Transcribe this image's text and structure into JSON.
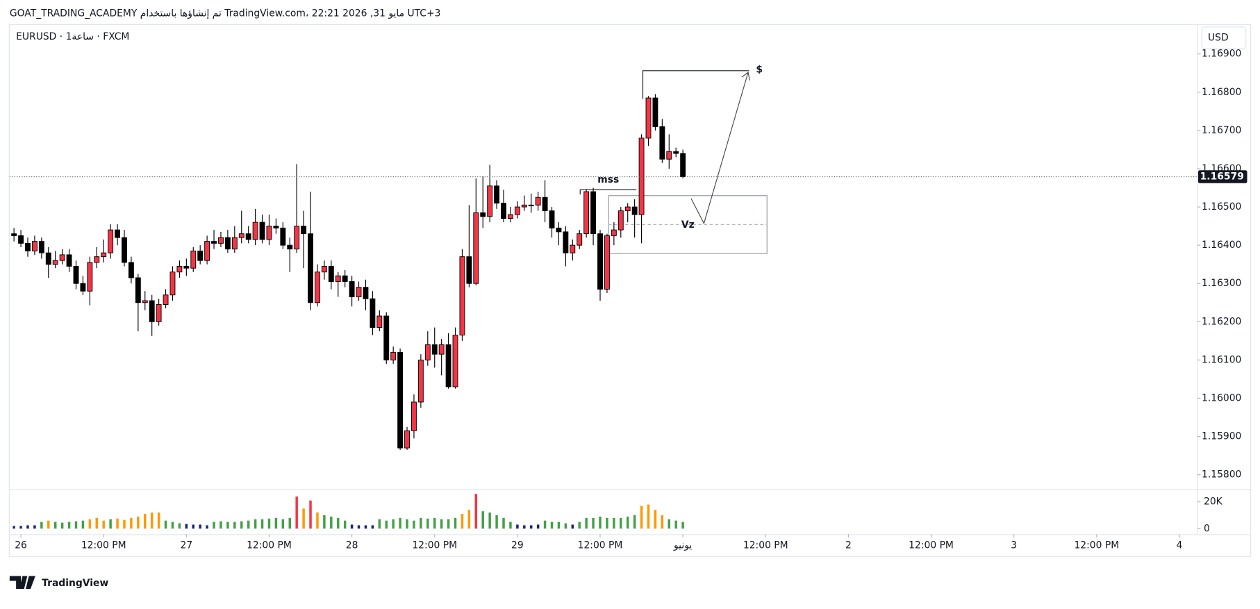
{
  "header": {
    "caption": "GOAT_TRADING_ACADEMY تم إنشاؤها باستخدام TradingView.com، 22:21 2026 ,31 مايو UTC+3"
  },
  "footer": {
    "logo": "TradingView"
  },
  "chart_data": {
    "type": "candlestick",
    "title": "EURUSD · 1ساعة · FXCM",
    "currency": "USD",
    "up_color": "#f23645",
    "down_color": "#000000",
    "wick_color": "#000000",
    "grid": false,
    "x": [
      -1,
      0,
      1,
      2,
      3,
      4,
      5,
      6,
      7,
      8,
      9,
      10,
      11,
      12,
      13,
      14,
      15,
      16,
      17,
      18,
      19,
      20,
      21,
      22,
      23,
      24,
      25,
      26,
      27,
      28,
      29,
      30,
      31,
      32,
      33,
      34,
      35,
      36,
      37,
      38,
      39,
      40,
      41,
      42,
      43,
      44,
      45,
      46,
      47,
      48,
      49,
      50,
      51,
      52,
      53,
      54,
      55,
      56,
      57,
      58,
      59,
      60,
      61,
      62,
      63,
      64,
      65,
      66,
      67,
      68,
      69,
      70,
      71,
      72,
      73,
      74,
      75,
      76,
      77,
      78,
      79,
      80,
      81,
      82,
      83,
      84,
      85,
      86,
      87,
      88,
      89,
      90,
      91,
      92,
      93,
      94,
      95,
      96
    ],
    "open": [
      1.1643,
      1.16425,
      1.16405,
      1.16385,
      1.1641,
      1.1638,
      1.1635,
      1.1636,
      1.16375,
      1.16345,
      1.163,
      1.1628,
      1.16355,
      1.1637,
      1.1638,
      1.1644,
      1.1642,
      1.16355,
      1.16315,
      1.1625,
      1.16255,
      1.162,
      1.16245,
      1.1627,
      1.1633,
      1.16345,
      1.1634,
      1.16385,
      1.1636,
      1.1641,
      1.16405,
      1.1642,
      1.1639,
      1.1642,
      1.1643,
      1.16415,
      1.1646,
      1.16415,
      1.1645,
      1.16445,
      1.164,
      1.1639,
      1.1645,
      1.1643,
      1.1625,
      1.1633,
      1.16345,
      1.16305,
      1.1632,
      1.16305,
      1.16265,
      1.1629,
      1.1626,
      1.16185,
      1.16215,
      1.161,
      1.1612,
      1.1587,
      1.15915,
      1.1599,
      1.161,
      1.1614,
      1.16115,
      1.1614,
      1.1603,
      1.16165,
      1.1637,
      1.163,
      1.16485,
      1.16475,
      1.16555,
      1.1651,
      1.1647,
      1.1648,
      1.165,
      1.16505,
      1.16505,
      1.16525,
      1.1649,
      1.16445,
      1.16435,
      1.1638,
      1.164,
      1.1643,
      1.1654,
      1.1643,
      1.16285,
      1.16425,
      1.1644,
      1.1649,
      1.165,
      1.1648,
      1.1668,
      1.16785,
      1.1671,
      1.16625,
      1.16645,
      1.1664
    ],
    "high": [
      1.16445,
      1.1644,
      1.1642,
      1.16425,
      1.1642,
      1.16395,
      1.16385,
      1.1639,
      1.1639,
      1.1636,
      1.1632,
      1.1637,
      1.16395,
      1.16415,
      1.16455,
      1.16455,
      1.1644,
      1.1637,
      1.16325,
      1.1628,
      1.1627,
      1.1626,
      1.16285,
      1.16345,
      1.1636,
      1.16365,
      1.16395,
      1.164,
      1.16425,
      1.1644,
      1.16435,
      1.1644,
      1.1645,
      1.1649,
      1.1645,
      1.16495,
      1.1648,
      1.1648,
      1.1647,
      1.1646,
      1.1642,
      1.16612,
      1.1649,
      1.1654,
      1.1635,
      1.1636,
      1.1636,
      1.1633,
      1.16335,
      1.1632,
      1.16305,
      1.1631,
      1.1628,
      1.1623,
      1.16225,
      1.16135,
      1.1613,
      1.15925,
      1.1601,
      1.16115,
      1.16175,
      1.16185,
      1.16155,
      1.1617,
      1.16185,
      1.1639,
      1.16505,
      1.16575,
      1.1658,
      1.1661,
      1.1657,
      1.16545,
      1.165,
      1.16515,
      1.1653,
      1.16535,
      1.1654,
      1.1657,
      1.165,
      1.1646,
      1.1645,
      1.16415,
      1.1644,
      1.16545,
      1.1655,
      1.1644,
      1.1643,
      1.1646,
      1.165,
      1.1651,
      1.1652,
      1.1669,
      1.1679,
      1.16795,
      1.1673,
      1.1669,
      1.16655,
      1.1665
    ],
    "low": [
      1.1641,
      1.16395,
      1.1637,
      1.16375,
      1.16365,
      1.16315,
      1.1634,
      1.1635,
      1.1633,
      1.16285,
      1.1627,
      1.16243,
      1.1634,
      1.16355,
      1.16365,
      1.164,
      1.16345,
      1.163,
      1.16175,
      1.1623,
      1.16163,
      1.1619,
      1.16235,
      1.16255,
      1.16315,
      1.1632,
      1.1633,
      1.1635,
      1.1635,
      1.1639,
      1.16395,
      1.1638,
      1.1638,
      1.16405,
      1.16405,
      1.164,
      1.16405,
      1.164,
      1.1643,
      1.1639,
      1.1633,
      1.1638,
      1.1634,
      1.1623,
      1.1624,
      1.1631,
      1.16285,
      1.16265,
      1.1629,
      1.1624,
      1.16255,
      1.1623,
      1.16165,
      1.16175,
      1.1609,
      1.1609,
      1.15865,
      1.15865,
      1.15895,
      1.15975,
      1.16085,
      1.1608,
      1.1606,
      1.16025,
      1.16025,
      1.1615,
      1.1629,
      1.16295,
      1.16445,
      1.1646,
      1.16495,
      1.1646,
      1.1646,
      1.1647,
      1.1649,
      1.16485,
      1.1649,
      1.1646,
      1.1642,
      1.164,
      1.16345,
      1.1636,
      1.1639,
      1.1642,
      1.164,
      1.16255,
      1.16275,
      1.164,
      1.1642,
      1.1646,
      1.1642,
      1.16405,
      1.1666,
      1.167,
      1.16615,
      1.166,
      1.1663,
      1.16575
    ],
    "close": [
      1.16425,
      1.16405,
      1.16385,
      1.1641,
      1.1638,
      1.1635,
      1.1636,
      1.16375,
      1.16345,
      1.163,
      1.1628,
      1.16355,
      1.1637,
      1.1638,
      1.1644,
      1.1642,
      1.16355,
      1.16315,
      1.1625,
      1.16255,
      1.162,
      1.16245,
      1.1627,
      1.1633,
      1.16345,
      1.1634,
      1.16385,
      1.1636,
      1.1641,
      1.16405,
      1.1642,
      1.1639,
      1.1642,
      1.1643,
      1.16415,
      1.1646,
      1.16415,
      1.1645,
      1.16445,
      1.164,
      1.1639,
      1.1645,
      1.1643,
      1.1625,
      1.1633,
      1.16345,
      1.16305,
      1.1632,
      1.16305,
      1.16265,
      1.1629,
      1.1626,
      1.16185,
      1.16215,
      1.161,
      1.1612,
      1.1587,
      1.15915,
      1.1599,
      1.161,
      1.1614,
      1.16115,
      1.1614,
      1.1603,
      1.16165,
      1.1637,
      1.163,
      1.16485,
      1.16475,
      1.16555,
      1.1651,
      1.1647,
      1.1648,
      1.165,
      1.16505,
      1.16505,
      1.16525,
      1.1649,
      1.16445,
      1.16435,
      1.1638,
      1.164,
      1.1643,
      1.1654,
      1.1643,
      1.16285,
      1.16425,
      1.1644,
      1.1649,
      1.165,
      1.1648,
      1.1668,
      1.16785,
      1.1671,
      1.16625,
      1.16645,
      1.1664,
      1.16579
    ],
    "xlim": [
      -1.63,
      170.6
    ],
    "xticks": [
      {
        "value": 0,
        "label": "26"
      },
      {
        "value": 12,
        "label": "12:00 PM"
      },
      {
        "value": 24,
        "label": "27"
      },
      {
        "value": 36,
        "label": "12:00 PM"
      },
      {
        "value": 48,
        "label": "28"
      },
      {
        "value": 60,
        "label": "12:00 PM"
      },
      {
        "value": 72,
        "label": "29"
      },
      {
        "value": 84,
        "label": "12:00 PM"
      },
      {
        "value": 96,
        "label": "يونيو"
      },
      {
        "value": 108,
        "label": "12:00 PM"
      },
      {
        "value": 120,
        "label": "2"
      },
      {
        "value": 132,
        "label": "12:00 PM"
      },
      {
        "value": 144,
        "label": "3"
      },
      {
        "value": 156,
        "label": "12:00 PM"
      },
      {
        "value": 168,
        "label": "4"
      }
    ],
    "ylim": [
      1.15762,
      1.16978
    ],
    "yticks": [
      {
        "value": 1.158,
        "label": "1.15800"
      },
      {
        "value": 1.159,
        "label": "1.15900"
      },
      {
        "value": 1.16,
        "label": "1.16000"
      },
      {
        "value": 1.161,
        "label": "1.16100"
      },
      {
        "value": 1.162,
        "label": "1.16200"
      },
      {
        "value": 1.163,
        "label": "1.16300"
      },
      {
        "value": 1.164,
        "label": "1.16400"
      },
      {
        "value": 1.165,
        "label": "1.16500"
      },
      {
        "value": 1.166,
        "label": "1.16600"
      },
      {
        "value": 1.167,
        "label": "1.16700"
      },
      {
        "value": 1.168,
        "label": "1.16800"
      },
      {
        "value": 1.169,
        "label": "1.16900"
      }
    ],
    "volume": {
      "ylim": [
        0,
        27000
      ],
      "yticks": [
        {
          "value": 20000,
          "label": "20K"
        },
        0
      ],
      "values": [
        2000,
        2000,
        2500,
        2500,
        5000,
        6000,
        5000,
        4500,
        5000,
        5500,
        6000,
        7000,
        8000,
        6000,
        7000,
        7500,
        6500,
        8000,
        9000,
        11000,
        12000,
        12000,
        6000,
        5000,
        4000,
        3500,
        3000,
        3000,
        2500,
        5000,
        5500,
        5000,
        5000,
        5500,
        6000,
        7000,
        7000,
        7500,
        8000,
        7000,
        8000,
        24000,
        15000,
        21000,
        12000,
        10000,
        9000,
        8000,
        6000,
        3000,
        2500,
        2500,
        2500,
        7000,
        6000,
        7000,
        8000,
        7000,
        6000,
        8000,
        7500,
        8000,
        7000,
        7000,
        8000,
        11000,
        14000,
        26000,
        13000,
        12000,
        10000,
        8000,
        5000,
        3000,
        2500,
        2500,
        3000,
        6000,
        5000,
        5000,
        4000,
        3000,
        5000,
        8000,
        8000,
        9000,
        8000,
        8000,
        8000,
        9000,
        10000,
        17000,
        18000,
        14000,
        10000,
        7000,
        6000,
        5000
      ],
      "colors": [
        "#1a237e",
        "#1a237e",
        "#1a237e",
        "#1a237e",
        "#43a047",
        "#ff9800",
        "#43a047",
        "#43a047",
        "#43a047",
        "#43a047",
        "#43a047",
        "#ff9800",
        "#ff9800",
        "#ff9800",
        "#43a047",
        "#ff9800",
        "#ff9800",
        "#ff9800",
        "#ff9800",
        "#ff9800",
        "#ff9800",
        "#ff9800",
        "#43a047",
        "#43a047",
        "#43a047",
        "#1a237e",
        "#1a237e",
        "#1a237e",
        "#1a237e",
        "#43a047",
        "#43a047",
        "#43a047",
        "#43a047",
        "#43a047",
        "#43a047",
        "#43a047",
        "#43a047",
        "#43a047",
        "#43a047",
        "#43a047",
        "#43a047",
        "#f23645",
        "#ff9800",
        "#f23645",
        "#ff9800",
        "#43a047",
        "#43a047",
        "#43a047",
        "#43a047",
        "#1a237e",
        "#1a237e",
        "#1a237e",
        "#1a237e",
        "#43a047",
        "#43a047",
        "#43a047",
        "#43a047",
        "#43a047",
        "#43a047",
        "#43a047",
        "#43a047",
        "#43a047",
        "#43a047",
        "#43a047",
        "#43a047",
        "#ff9800",
        "#ff9800",
        "#f23645",
        "#43a047",
        "#43a047",
        "#43a047",
        "#43a047",
        "#43a047",
        "#1a237e",
        "#1a237e",
        "#1a237e",
        "#1a237e",
        "#43a047",
        "#43a047",
        "#43a047",
        "#43a047",
        "#1a237e",
        "#43a047",
        "#43a047",
        "#43a047",
        "#43a047",
        "#43a047",
        "#43a047",
        "#43a047",
        "#43a047",
        "#43a047",
        "#ff9800",
        "#ff9800",
        "#ff9800",
        "#ff9800",
        "#43a047",
        "#43a047",
        "#43a047"
      ]
    },
    "annotations": [
      {
        "text": "mss"
      },
      {
        "text": "Vz"
      },
      {
        "text": "$"
      }
    ]
  }
}
